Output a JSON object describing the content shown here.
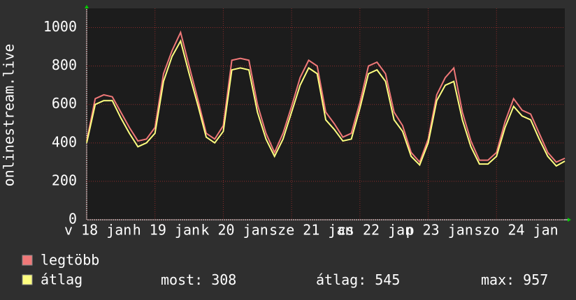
{
  "chart_data": {
    "type": "line",
    "y_label": "onlinestream.live",
    "x": [
      0,
      3,
      6,
      9,
      12,
      15,
      18,
      21,
      24,
      27,
      30,
      33,
      36,
      39,
      42,
      45,
      48,
      51,
      54,
      57,
      60,
      63,
      66,
      69,
      72,
      75,
      78,
      81,
      84,
      87,
      90,
      93,
      96,
      99,
      102,
      105,
      108,
      111,
      114,
      117,
      120,
      123,
      126,
      129,
      132,
      135,
      138,
      141,
      144,
      147,
      150,
      153,
      156,
      159,
      162,
      165,
      168
    ],
    "xlim": [
      0,
      168
    ],
    "xticks": [
      {
        "value": 0,
        "label": "v 18 jan"
      },
      {
        "value": 24,
        "label": "h 19 jan"
      },
      {
        "value": 48,
        "label": "k 20 jan"
      },
      {
        "value": 72,
        "label": "sze 21 jan"
      },
      {
        "value": 96,
        "label": "cs 22 jan"
      },
      {
        "value": 120,
        "label": "p 23 jan"
      },
      {
        "value": 144,
        "label": "szo 24 jan"
      }
    ],
    "ylim": [
      0,
      1100
    ],
    "yticks": [
      0,
      200,
      400,
      600,
      800,
      1000
    ],
    "grid": true,
    "series": [
      {
        "name": "legtöbb",
        "color": "#f07878",
        "values": [
          410,
          630,
          650,
          640,
          560,
          480,
          410,
          420,
          480,
          760,
          880,
          975,
          800,
          630,
          450,
          420,
          490,
          830,
          840,
          830,
          600,
          450,
          350,
          450,
          590,
          740,
          830,
          800,
          560,
          500,
          430,
          450,
          610,
          800,
          820,
          760,
          560,
          490,
          350,
          300,
          420,
          650,
          740,
          790,
          560,
          410,
          310,
          310,
          350,
          510,
          630,
          570,
          550,
          450,
          350,
          300,
          320
        ]
      },
      {
        "name": "átlag",
        "color": "#ffff80",
        "values": [
          400,
          600,
          620,
          620,
          530,
          450,
          380,
          400,
          450,
          720,
          850,
          930,
          760,
          600,
          430,
          400,
          460,
          780,
          790,
          780,
          560,
          420,
          330,
          420,
          560,
          700,
          790,
          760,
          520,
          470,
          410,
          420,
          580,
          760,
          780,
          720,
          520,
          460,
          330,
          285,
          400,
          620,
          700,
          720,
          520,
          380,
          290,
          290,
          330,
          480,
          590,
          540,
          520,
          420,
          330,
          280,
          305
        ]
      }
    ],
    "stats": [
      {
        "label": "most:",
        "value": 308
      },
      {
        "label": "átlag:",
        "value": 545
      },
      {
        "label": "max:",
        "value": 957
      }
    ]
  }
}
